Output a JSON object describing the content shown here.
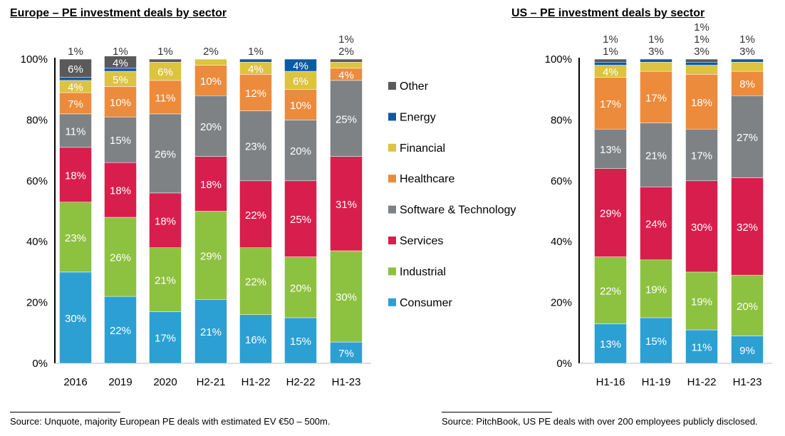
{
  "sectors": [
    "Consumer",
    "Industrial",
    "Services",
    "Software & Technology",
    "Healthcare",
    "Financial",
    "Energy",
    "Other"
  ],
  "colors": {
    "Consumer": "#2ca0d2",
    "Industrial": "#8dc140",
    "Services": "#d81e4c",
    "Software & Technology": "#7f8285",
    "Healthcare": "#ec8b3c",
    "Financial": "#dcc340",
    "Energy": "#0b5aa5",
    "Other": "#5a5a5a"
  },
  "sources": {
    "europe": "Source:  Unquote, majority European PE deals with estimated EV €50 – 500m.",
    "us": "Source:  PitchBook, US PE deals with over 200 employees publicly disclosed."
  },
  "chart_data": [
    {
      "type": "bar",
      "stacked": true,
      "title": "Europe – PE investment deals by sector",
      "categories": [
        "2016",
        "2019",
        "2020",
        "H2-21",
        "H1-22",
        "H2-22",
        "H1-23"
      ],
      "ylim": [
        0,
        100
      ],
      "yticks": [
        "0%",
        "20%",
        "40%",
        "60%",
        "80%",
        "100%"
      ],
      "legend": "right",
      "series": [
        {
          "name": "Consumer",
          "values": [
            30,
            22,
            17,
            21,
            16,
            15,
            7
          ]
        },
        {
          "name": "Industrial",
          "values": [
            23,
            26,
            21,
            29,
            22,
            20,
            30
          ]
        },
        {
          "name": "Services",
          "values": [
            18,
            18,
            18,
            18,
            22,
            25,
            31
          ]
        },
        {
          "name": "Software & Technology",
          "values": [
            11,
            15,
            26,
            20,
            23,
            20,
            25
          ]
        },
        {
          "name": "Healthcare",
          "values": [
            7,
            10,
            11,
            10,
            12,
            10,
            4
          ]
        },
        {
          "name": "Financial",
          "values": [
            4,
            5,
            6,
            2,
            4,
            6,
            2
          ]
        },
        {
          "name": "Energy",
          "values": [
            1,
            1,
            0,
            0,
            1,
            4,
            0
          ]
        },
        {
          "name": "Other",
          "values": [
            6,
            4,
            1,
            0,
            0,
            0,
            1
          ]
        }
      ]
    },
    {
      "type": "bar",
      "stacked": true,
      "title": "US – PE investment deals by sector",
      "categories": [
        "H1-16",
        "H1-19",
        "H1-22",
        "H1-23"
      ],
      "ylim": [
        0,
        100
      ],
      "yticks": [
        "0%",
        "20%",
        "40%",
        "60%",
        "80%",
        "100%"
      ],
      "series": [
        {
          "name": "Consumer",
          "values": [
            13,
            15,
            11,
            9
          ]
        },
        {
          "name": "Industrial",
          "values": [
            22,
            19,
            19,
            20
          ]
        },
        {
          "name": "Services",
          "values": [
            29,
            24,
            30,
            32
          ]
        },
        {
          "name": "Software & Technology",
          "values": [
            13,
            21,
            17,
            27
          ]
        },
        {
          "name": "Healthcare",
          "values": [
            17,
            17,
            18,
            8
          ]
        },
        {
          "name": "Financial",
          "values": [
            4,
            3,
            3,
            3
          ]
        },
        {
          "name": "Energy",
          "values": [
            1,
            1,
            1,
            1
          ]
        },
        {
          "name": "Other",
          "values": [
            1,
            0,
            1,
            0
          ]
        }
      ]
    }
  ]
}
